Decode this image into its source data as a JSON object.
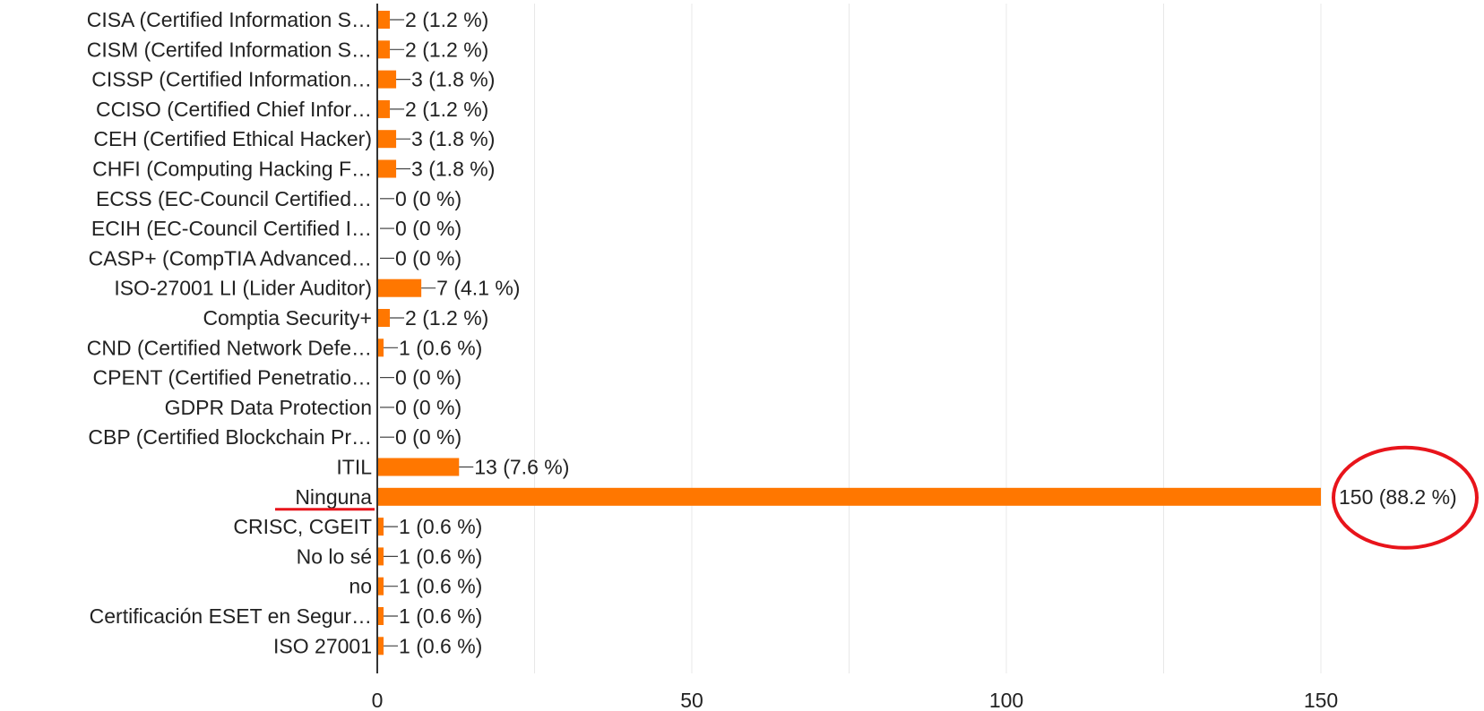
{
  "chart_data": {
    "type": "bar",
    "orientation": "horizontal",
    "categories": [
      "CISA (Certified Information S…",
      "CISM (Certifed Information S…",
      "CISSP (Certified Information…",
      "CCISO (Certified Chief Infor…",
      "CEH (Certified Ethical Hacker)",
      "CHFI (Computing Hacking F…",
      "ECSS (EC-Council Certified…",
      "ECIH (EC-Council Certified I…",
      "CASP+ (CompTIA Advanced…",
      "ISO-27001 LI (Lider Auditor)",
      "Comptia Security+",
      "CND (Certified Network Defe…",
      "CPENT (Certified Penetratio…",
      "GDPR Data Protection",
      "CBP (Certified Blockchain Pr…",
      "ITIL",
      "Ninguna",
      "CRISC, CGEIT",
      "No lo sé",
      "no",
      "Certificación ESET en Segur…",
      "ISO 27001"
    ],
    "values": [
      2,
      2,
      3,
      2,
      3,
      3,
      0,
      0,
      0,
      7,
      2,
      1,
      0,
      0,
      0,
      13,
      150,
      1,
      1,
      1,
      1,
      1
    ],
    "data_labels": [
      "2 (1.2 %)",
      "2 (1.2 %)",
      "3 (1.8 %)",
      "2 (1.2 %)",
      "3 (1.8 %)",
      "3 (1.8 %)",
      "0 (0 %)",
      "0 (0 %)",
      "0 (0 %)",
      "7 (4.1 %)",
      "2 (1.2 %)",
      "1 (0.6 %)",
      "0 (0 %)",
      "0 (0 %)",
      "0 (0 %)",
      "13 (7.6 %)",
      "150 (88.2 %)",
      "1 (0.6 %)",
      "1 (0.6 %)",
      "1 (0.6 %)",
      "1 (0.6 %)",
      "1 (0.6 %)"
    ],
    "x_ticks": [
      0,
      50,
      100,
      150
    ],
    "xlim": [
      0,
      150
    ],
    "grid": true,
    "legend": "none",
    "highlight": {
      "category_index": 16,
      "underline": true,
      "circle_around_label": true
    }
  },
  "colors": {
    "bar": "#ff7700",
    "axis": "#333333",
    "grid": "#e8e8e8",
    "annotation": "#e8141b",
    "text": "#222222"
  }
}
